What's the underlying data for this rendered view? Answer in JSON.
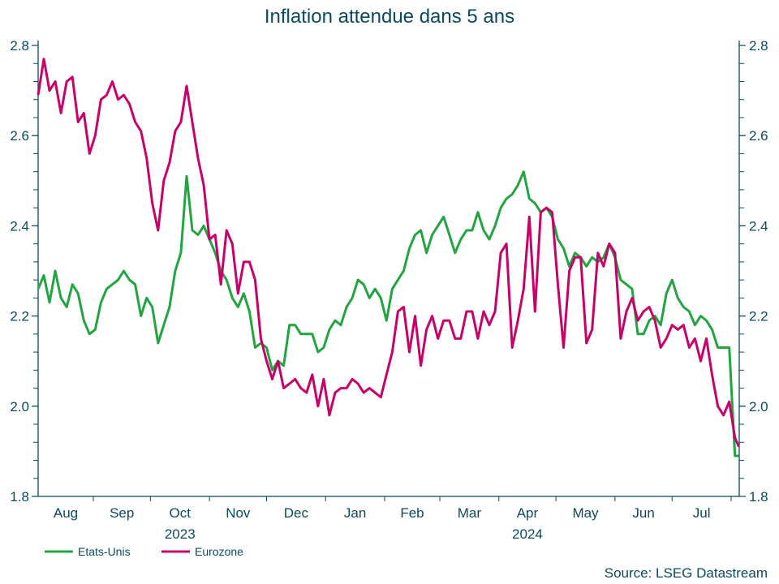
{
  "chart_data": {
    "type": "line",
    "title": "Inflation attendue dans 5 ans",
    "source": "Source: LSEG Datastream",
    "ylim": [
      1.8,
      2.8
    ],
    "yticks": [
      "1.8",
      "2.0",
      "2.2",
      "2.4",
      "2.6",
      "2.8"
    ],
    "y_axis_sides": "left-and-right",
    "grid": false,
    "legend_position": "bottom-left",
    "month_labels": [
      "Aug",
      "Sep",
      "Oct",
      "Nov",
      "Dec",
      "Jan",
      "Feb",
      "Mar",
      "Apr",
      "May",
      "Jun",
      "Jul"
    ],
    "month_starts": [
      "2023-08-01",
      "2023-09-01",
      "2023-10-01",
      "2023-11-01",
      "2023-12-01",
      "2024-01-01",
      "2024-02-01",
      "2024-03-01",
      "2024-04-01",
      "2024-05-01",
      "2024-06-01",
      "2024-07-01",
      "2024-08-01"
    ],
    "year_labels": [
      {
        "label": "2023",
        "under": "Oct"
      },
      {
        "label": "2024",
        "under": "Apr"
      }
    ],
    "colors": {
      "Etats-Unis": "#22a540",
      "Eurozone": "#c8006a",
      "text": "#0b4a5e"
    },
    "x": [
      "2023-08-03",
      "2023-08-06",
      "2023-08-09",
      "2023-08-12",
      "2023-08-15",
      "2023-08-18",
      "2023-08-21",
      "2023-08-24",
      "2023-08-27",
      "2023-08-30",
      "2023-09-02",
      "2023-09-05",
      "2023-09-08",
      "2023-09-11",
      "2023-09-14",
      "2023-09-17",
      "2023-09-20",
      "2023-09-23",
      "2023-09-26",
      "2023-09-29",
      "2023-10-02",
      "2023-10-05",
      "2023-10-08",
      "2023-10-11",
      "2023-10-14",
      "2023-10-17",
      "2023-10-20",
      "2023-10-23",
      "2023-10-26",
      "2023-10-29",
      "2023-11-01",
      "2023-11-04",
      "2023-11-07",
      "2023-11-10",
      "2023-11-13",
      "2023-11-16",
      "2023-11-19",
      "2023-11-22",
      "2023-11-25",
      "2023-11-28",
      "2023-12-01",
      "2023-12-04",
      "2023-12-07",
      "2023-12-10",
      "2023-12-13",
      "2023-12-16",
      "2023-12-19",
      "2023-12-22",
      "2023-12-25",
      "2023-12-28",
      "2023-12-31",
      "2024-01-03",
      "2024-01-06",
      "2024-01-09",
      "2024-01-12",
      "2024-01-15",
      "2024-01-18",
      "2024-01-21",
      "2024-01-24",
      "2024-01-27",
      "2024-01-30",
      "2024-02-02",
      "2024-02-05",
      "2024-02-08",
      "2024-02-11",
      "2024-02-14",
      "2024-02-17",
      "2024-02-20",
      "2024-02-23",
      "2024-02-26",
      "2024-02-29",
      "2024-03-03",
      "2024-03-06",
      "2024-03-09",
      "2024-03-12",
      "2024-03-15",
      "2024-03-18",
      "2024-03-21",
      "2024-03-24",
      "2024-03-27",
      "2024-03-30",
      "2024-04-02",
      "2024-04-05",
      "2024-04-08",
      "2024-04-11",
      "2024-04-14",
      "2024-04-17",
      "2024-04-20",
      "2024-04-23",
      "2024-04-26",
      "2024-04-29",
      "2024-05-02",
      "2024-05-05",
      "2024-05-08",
      "2024-05-11",
      "2024-05-14",
      "2024-05-17",
      "2024-05-20",
      "2024-05-23",
      "2024-05-26",
      "2024-05-29",
      "2024-06-01",
      "2024-06-04",
      "2024-06-07",
      "2024-06-10",
      "2024-06-13",
      "2024-06-16",
      "2024-06-19",
      "2024-06-22",
      "2024-06-25",
      "2024-06-28",
      "2024-07-01",
      "2024-07-04",
      "2024-07-07",
      "2024-07-10",
      "2024-07-13",
      "2024-07-16",
      "2024-07-19",
      "2024-07-22",
      "2024-07-25",
      "2024-07-28",
      "2024-07-31",
      "2024-08-03",
      "2024-08-05"
    ],
    "series": [
      {
        "name": "Etats-Unis",
        "values": [
          2.26,
          2.29,
          2.23,
          2.3,
          2.24,
          2.22,
          2.27,
          2.25,
          2.19,
          2.16,
          2.17,
          2.23,
          2.26,
          2.27,
          2.28,
          2.3,
          2.28,
          2.27,
          2.2,
          2.24,
          2.22,
          2.14,
          2.18,
          2.22,
          2.3,
          2.34,
          2.51,
          2.39,
          2.38,
          2.4,
          2.37,
          2.34,
          2.3,
          2.28,
          2.24,
          2.22,
          2.25,
          2.21,
          2.13,
          2.14,
          2.13,
          2.08,
          2.1,
          2.09,
          2.18,
          2.18,
          2.16,
          2.16,
          2.16,
          2.12,
          2.13,
          2.17,
          2.19,
          2.18,
          2.22,
          2.24,
          2.28,
          2.27,
          2.24,
          2.26,
          2.24,
          2.19,
          2.26,
          2.28,
          2.3,
          2.35,
          2.38,
          2.39,
          2.34,
          2.38,
          2.4,
          2.42,
          2.38,
          2.34,
          2.37,
          2.39,
          2.39,
          2.43,
          2.39,
          2.37,
          2.4,
          2.44,
          2.46,
          2.47,
          2.49,
          2.52,
          2.46,
          2.45,
          2.43,
          2.44,
          2.42,
          2.37,
          2.35,
          2.31,
          2.34,
          2.33,
          2.31,
          2.33,
          2.32,
          2.33,
          2.36,
          2.33,
          2.28,
          2.27,
          2.26,
          2.16,
          2.16,
          2.19,
          2.2,
          2.18,
          2.25,
          2.28,
          2.24,
          2.22,
          2.21,
          2.18,
          2.2,
          2.19,
          2.17,
          2.13,
          2.13,
          2.13,
          1.89,
          1.89
        ]
      },
      {
        "name": "Eurozone",
        "values": [
          2.69,
          2.77,
          2.7,
          2.72,
          2.65,
          2.72,
          2.73,
          2.63,
          2.65,
          2.56,
          2.6,
          2.68,
          2.69,
          2.72,
          2.68,
          2.69,
          2.67,
          2.63,
          2.61,
          2.55,
          2.45,
          2.39,
          2.5,
          2.54,
          2.61,
          2.63,
          2.71,
          2.63,
          2.55,
          2.49,
          2.37,
          2.38,
          2.27,
          2.39,
          2.36,
          2.25,
          2.32,
          2.32,
          2.28,
          2.15,
          2.1,
          2.06,
          2.1,
          2.04,
          2.05,
          2.06,
          2.04,
          2.03,
          2.07,
          2.0,
          2.06,
          1.98,
          2.03,
          2.04,
          2.04,
          2.06,
          2.05,
          2.03,
          2.04,
          2.03,
          2.02,
          2.07,
          2.12,
          2.21,
          2.22,
          2.12,
          2.2,
          2.09,
          2.17,
          2.2,
          2.15,
          2.19,
          2.19,
          2.15,
          2.15,
          2.21,
          2.21,
          2.15,
          2.21,
          2.18,
          2.21,
          2.34,
          2.36,
          2.13,
          2.19,
          2.26,
          2.42,
          2.21,
          2.43,
          2.44,
          2.43,
          2.27,
          2.13,
          2.3,
          2.33,
          2.33,
          2.14,
          2.17,
          2.34,
          2.31,
          2.36,
          2.34,
          2.15,
          2.21,
          2.24,
          2.19,
          2.21,
          2.22,
          2.19,
          2.13,
          2.15,
          2.18,
          2.17,
          2.18,
          2.13,
          2.15,
          2.1,
          2.15,
          2.07,
          2.0,
          1.98,
          2.01,
          1.93,
          1.91
        ]
      }
    ]
  }
}
